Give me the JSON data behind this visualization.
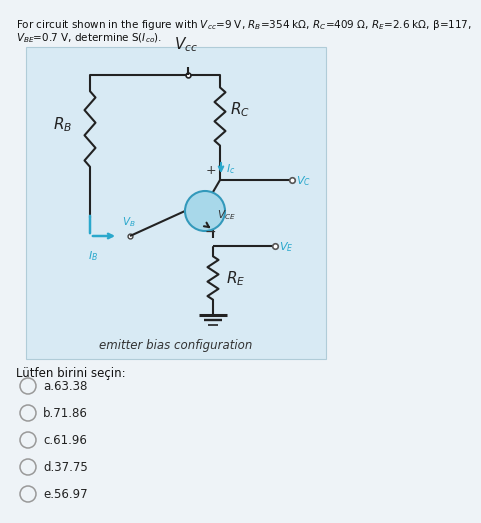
{
  "fig_bg": "#eef3f7",
  "circuit_bg": "#d8eaf4",
  "circuit_border": "#b0ccd8",
  "line_color": "#222222",
  "cyan_color": "#2aa8cc",
  "caption": "emitter bias configuration",
  "choices_header": "Lütfen birini seçin:",
  "choices": [
    "a.63.38",
    "b.71.86",
    "c.61.96",
    "d.37.75",
    "e.56.97"
  ],
  "q_line1": "For circuit shown in the figure with V",
  "q_line1b": "cc",
  "q_line1c": "=9 V, R",
  "q_line1d": "B",
  "q_line1e": "=354 kΩ, R",
  "q_line1f": "C",
  "q_line1g": "=409 Ω, R",
  "q_line1h": "E",
  "q_line1i": "=2.6 kΩ, β=117,",
  "q_line2": "V",
  "q_line2b": "BE",
  "q_line2c": "=0.7 V, determine S(I",
  "q_line2d": "co",
  "q_line2e": ")."
}
